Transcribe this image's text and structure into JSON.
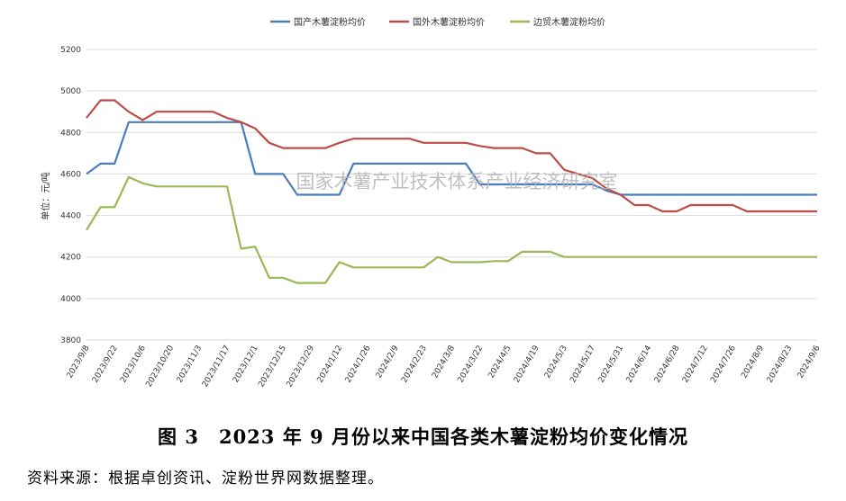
{
  "caption": "图 3　2023 年 9 月份以来中国各类木薯淀粉均价变化情况",
  "source": "资料来源：根据卓创资讯、淀粉世界网数据整理。",
  "watermark": "国家木薯产业技术体系产业经济研究室",
  "chart_data": {
    "type": "line",
    "ylabel": "单位：元/吨",
    "ylim": [
      3800,
      5200
    ],
    "yticks": [
      3800,
      4000,
      4200,
      4400,
      4600,
      4800,
      5000,
      5200
    ],
    "grid": true,
    "legend_position": "top-center",
    "x_start": "2023-09-08",
    "x_end": "2024-09-06",
    "x_tick_labels": [
      "2023/9/8",
      "2023/9/22",
      "2023/10/6",
      "2023/10/20",
      "2023/11/3",
      "2023/11/17",
      "2023/12/1",
      "2023/12/15",
      "2023/12/29",
      "2024/1/12",
      "2024/1/26",
      "2024/2/9",
      "2024/2/23",
      "2024/3/8",
      "2024/3/22",
      "2024/4/5",
      "2024/4/19",
      "2024/5/3",
      "2024/5/17",
      "2024/5/31",
      "2024/6/14",
      "2024/6/28",
      "2024/7/12",
      "2024/7/26",
      "2024/8/9",
      "2024/8/23",
      "2024/9/6"
    ],
    "x": [
      "2023-09-08",
      "2023-09-15",
      "2023-09-22",
      "2023-09-29",
      "2023-10-06",
      "2023-10-13",
      "2023-10-20",
      "2023-10-27",
      "2023-11-03",
      "2023-11-10",
      "2023-11-17",
      "2023-11-24",
      "2023-12-01",
      "2023-12-08",
      "2023-12-15",
      "2023-12-22",
      "2023-12-29",
      "2024-01-05",
      "2024-01-12",
      "2024-01-19",
      "2024-01-26",
      "2024-02-02",
      "2024-02-09",
      "2024-02-16",
      "2024-02-23",
      "2024-03-01",
      "2024-03-08",
      "2024-03-15",
      "2024-03-22",
      "2024-03-29",
      "2024-04-05",
      "2024-04-12",
      "2024-04-19",
      "2024-04-26",
      "2024-05-03",
      "2024-05-10",
      "2024-05-17",
      "2024-05-24",
      "2024-05-31",
      "2024-06-07",
      "2024-06-14",
      "2024-06-21",
      "2024-06-28",
      "2024-07-05",
      "2024-07-12",
      "2024-07-19",
      "2024-07-26",
      "2024-08-02",
      "2024-08-09",
      "2024-08-16",
      "2024-08-23",
      "2024-08-30",
      "2024-09-06"
    ],
    "series": [
      {
        "name": "国产木薯淀粉均价",
        "color": "#4a7ebb",
        "values": [
          4600,
          4650,
          4650,
          4850,
          4850,
          4850,
          4850,
          4850,
          4850,
          4850,
          4850,
          4850,
          4600,
          4600,
          4600,
          4500,
          4500,
          4500,
          4500,
          4650,
          4650,
          4650,
          4650,
          4650,
          4650,
          4650,
          4650,
          4650,
          4550,
          4550,
          4550,
          4550,
          4550,
          4550,
          4550,
          4550,
          4550,
          4520,
          4500,
          4500,
          4500,
          4500,
          4500,
          4500,
          4500,
          4500,
          4500,
          4500,
          4500,
          4500,
          4500,
          4500,
          4500
        ]
      },
      {
        "name": "国外木薯淀粉均价",
        "color": "#be4b48",
        "values": [
          4870,
          4955,
          4955,
          4900,
          4860,
          4900,
          4900,
          4900,
          4900,
          4900,
          4870,
          4850,
          4820,
          4750,
          4725,
          4725,
          4725,
          4725,
          4750,
          4770,
          4770,
          4770,
          4770,
          4770,
          4750,
          4750,
          4750,
          4750,
          4735,
          4725,
          4725,
          4725,
          4700,
          4700,
          4620,
          4600,
          4580,
          4530,
          4500,
          4450,
          4450,
          4420,
          4420,
          4450,
          4450,
          4450,
          4450,
          4420,
          4420,
          4420,
          4420,
          4420,
          4420
        ]
      },
      {
        "name": "边贸木薯淀粉均价",
        "color": "#98b954",
        "values": [
          4330,
          4440,
          4440,
          4585,
          4555,
          4540,
          4540,
          4540,
          4540,
          4540,
          4540,
          4240,
          4250,
          4100,
          4100,
          4075,
          4075,
          4075,
          4175,
          4150,
          4150,
          4150,
          4150,
          4150,
          4150,
          4200,
          4175,
          4175,
          4175,
          4180,
          4180,
          4225,
          4225,
          4225,
          4200,
          4200,
          4200,
          4200,
          4200,
          4200,
          4200,
          4200,
          4200,
          4200,
          4200,
          4200,
          4200,
          4200,
          4200,
          4200,
          4200,
          4200,
          4200
        ]
      }
    ]
  }
}
